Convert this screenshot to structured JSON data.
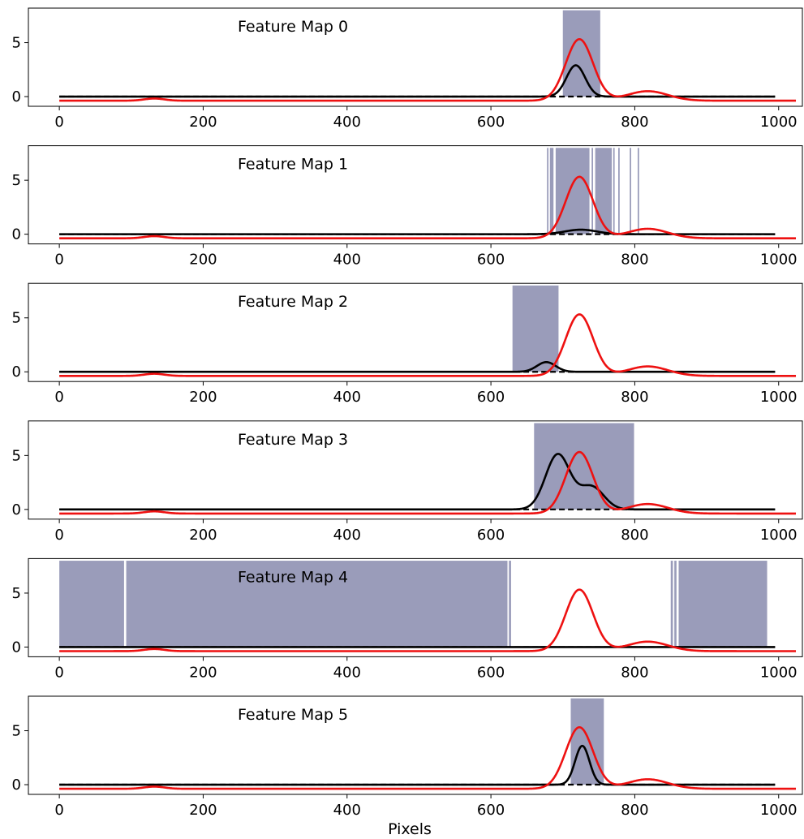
{
  "chart_data": {
    "type": "line",
    "xlabel": "Pixels",
    "xlim": [
      -43,
      1033
    ],
    "ylim": [
      -0.9,
      8.2
    ],
    "x_ticks": [
      0,
      200,
      400,
      600,
      800,
      1000
    ],
    "y_ticks": [
      0,
      5
    ],
    "grid": false,
    "colors": {
      "red_line": "#ee1111",
      "black_line": "#000000",
      "mask_fill": "#9a9cba"
    },
    "red_series": {
      "baseline": -0.38,
      "bump": {
        "center": 132,
        "width": 14,
        "height": 0.2
      },
      "main_peak": {
        "center": 723,
        "width": 19,
        "height": 5.7
      },
      "shoulder": {
        "center": 818,
        "width": 28,
        "height": 0.88
      },
      "x_end": 1024
    },
    "panels": [
      {
        "title": "Feature Map 0",
        "mask": [
          [
            700,
            752
          ]
        ],
        "activation": [
          {
            "center": 718,
            "width": 13,
            "height": 2.9
          }
        ]
      },
      {
        "title": "Feature Map 1",
        "mask": [
          [
            678,
            680
          ],
          [
            682,
            687
          ],
          [
            690,
            737
          ],
          [
            740,
            742
          ],
          [
            745,
            768
          ],
          [
            770,
            772
          ],
          [
            777,
            779
          ],
          [
            793,
            795
          ],
          [
            804,
            806
          ]
        ],
        "activation": [
          {
            "center": 725,
            "width": 22,
            "height": 0.42
          }
        ]
      },
      {
        "title": "Feature Map 2",
        "mask": [
          [
            630,
            694
          ]
        ],
        "activation": [
          {
            "center": 677,
            "width": 13,
            "height": 0.9
          }
        ]
      },
      {
        "title": "Feature Map 3",
        "mask": [
          [
            660,
            799
          ]
        ],
        "activation": [
          {
            "center": 693,
            "width": 17,
            "height": 5.1
          },
          {
            "center": 740,
            "width": 17,
            "height": 2.1
          }
        ]
      },
      {
        "title": "Feature Map 4",
        "mask": [
          [
            0,
            90
          ],
          [
            93,
            623
          ],
          [
            625,
            628
          ],
          [
            850,
            853
          ],
          [
            855,
            858
          ],
          [
            861,
            984
          ]
        ],
        "activation": []
      },
      {
        "title": "Feature Map 5",
        "mask": [
          [
            711,
            757
          ]
        ],
        "activation": [
          {
            "center": 727,
            "width": 10,
            "height": 3.6
          }
        ]
      }
    ]
  }
}
